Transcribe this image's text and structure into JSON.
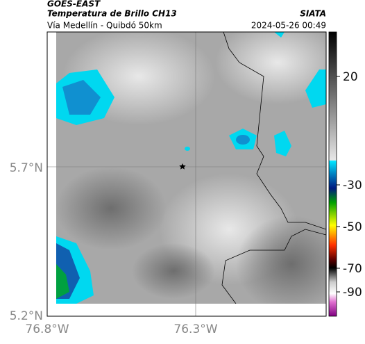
{
  "header": {
    "source": "GOES-EAST",
    "product": "Temperatura de Brillo CH13",
    "route": "Vía Medellín - Quibdó 50km",
    "brand": "SIATA",
    "datetime": "2024-05-26 00:49"
  },
  "map": {
    "lat_ticks": [
      "5.7°N",
      "5.2°N"
    ],
    "lon_ticks": [
      "76.8°W",
      "76.3°W"
    ]
  },
  "colorbar": {
    "ticks": [
      20,
      -30,
      -50,
      -70,
      -90
    ]
  }
}
